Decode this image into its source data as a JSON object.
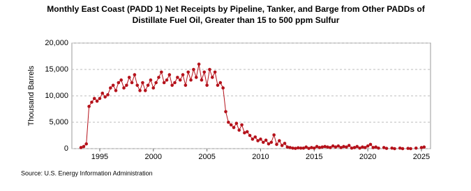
{
  "chart_data": {
    "type": "line",
    "title": [
      "Monthly East Coast (PADD 1) Net Receipts by Pipeline, Tanker, and Barge from Other PADDs of",
      "Distillate Fuel Oil, Greater than 15 to 500 ppm Sulfur"
    ],
    "y_label": "Thousand Barrels",
    "source": "Source: U.S. Energy Information Administration",
    "xlim": [
      1992.4,
      2025.85
    ],
    "xticks": [
      1995,
      2000,
      2005,
      2010,
      2015,
      2020,
      2025
    ],
    "ylim": [
      0,
      20000
    ],
    "yticks": [
      0,
      {
        "value": 5000,
        "label": "5,000"
      },
      {
        "value": 10000,
        "label": "10,000"
      },
      {
        "value": 15000,
        "label": "15,000"
      },
      {
        "value": 20000,
        "label": "20,000"
      }
    ],
    "grid": true,
    "series": [
      {
        "color": "#b5121b",
        "x": [
          1993.25,
          1993.5,
          1993.75,
          1994,
          1994.25,
          1994.5,
          1994.75,
          1995,
          1995.25,
          1995.5,
          1995.75,
          1996,
          1996.25,
          1996.5,
          1996.75,
          1997,
          1997.25,
          1997.5,
          1997.75,
          1998,
          1998.25,
          1998.5,
          1998.75,
          1999,
          1999.25,
          1999.5,
          1999.75,
          2000,
          2000.25,
          2000.5,
          2000.75,
          2001,
          2001.25,
          2001.5,
          2001.75,
          2002,
          2002.25,
          2002.5,
          2002.75,
          2003,
          2003.25,
          2003.5,
          2003.75,
          2004,
          2004.25,
          2004.5,
          2004.75,
          2005,
          2005.25,
          2005.5,
          2005.75,
          2006,
          2006.25,
          2006.5,
          2006.75,
          2007,
          2007.25,
          2007.5,
          2007.75,
          2008,
          2008.25,
          2008.5,
          2008.75,
          2009,
          2009.25,
          2009.5,
          2009.75,
          2010,
          2010.25,
          2010.5,
          2010.75,
          2011,
          2011.25,
          2011.5,
          2011.75,
          2012,
          2012.25,
          2012.5,
          2012.75,
          2013,
          2013.25,
          2013.5,
          2013.75,
          2014,
          2014.25,
          2014.5,
          2014.75,
          2015,
          2015.25,
          2015.5,
          2015.75,
          2016,
          2016.25,
          2016.5,
          2016.75,
          2017,
          2017.25,
          2017.5,
          2017.75,
          2018,
          2018.25,
          2018.5,
          2018.75,
          2019,
          2019.25,
          2019.5,
          2019.75,
          2020,
          2020.25,
          2020.5,
          2020.75,
          2021,
          2021.25,
          2021.5,
          2021.75,
          2022,
          2022.25,
          2022.5,
          2022.75,
          2023,
          2023.25,
          2023.5,
          2023.75,
          2024,
          2024.25,
          2024.5,
          2024.75,
          2025,
          2025.25
        ],
        "values": [
          200,
          400,
          900,
          8000,
          8800,
          9500,
          9000,
          9500,
          10500,
          9800,
          10200,
          11500,
          12000,
          11000,
          12500,
          13000,
          11500,
          12000,
          13500,
          12500,
          14000,
          12000,
          11000,
          12500,
          11000,
          12000,
          13000,
          11500,
          12500,
          13500,
          14500,
          12500,
          13000,
          14000,
          12000,
          12500,
          13500,
          13000,
          14000,
          12000,
          14500,
          13000,
          15000,
          13500,
          16000,
          13000,
          14500,
          12000,
          15000,
          13500,
          14500,
          12000,
          12500,
          11500,
          7000,
          5000,
          4500,
          4000,
          4800,
          3500,
          4500,
          3000,
          3200,
          2500,
          1800,
          2200,
          1500,
          1800,
          1200,
          1600,
          900,
          1200,
          2600,
          800,
          1500,
          600,
          1000,
          300,
          200,
          100,
          50,
          150,
          100,
          100,
          300,
          50,
          200,
          100,
          400,
          200,
          300,
          400,
          300,
          200,
          500,
          300,
          500,
          200,
          400,
          300,
          600,
          100,
          200,
          400,
          100,
          300,
          200,
          500,
          800,
          200,
          300,
          100,
          null,
          200,
          50,
          null,
          100,
          0,
          null,
          100,
          0,
          null,
          50,
          0,
          null,
          100,
          null,
          200,
          300
        ]
      }
    ]
  }
}
